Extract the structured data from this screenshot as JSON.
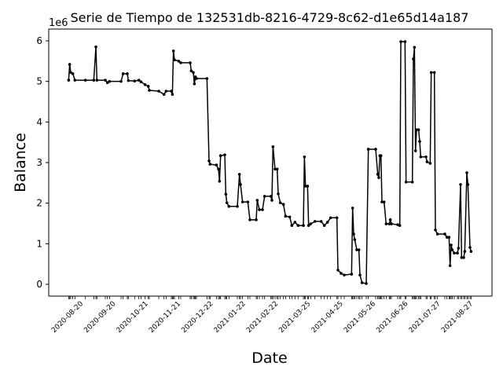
{
  "chart_data": {
    "type": "line",
    "title": "Serie de Tiempo de 132531db-8216-4729-8c62-d1e65d14a187",
    "x_label": "Date",
    "y_label": "Balance",
    "y_offset_label": "1e6",
    "xlim": [
      "2020-07-21",
      "2021-09-17"
    ],
    "xticks": [
      "2020-08-20",
      "2020-09-20",
      "2020-10-21",
      "2020-11-21",
      "2020-12-22",
      "2021-01-22",
      "2021-02-22",
      "2021-03-25",
      "2021-04-25",
      "2021-05-26",
      "2021-06-26",
      "2021-07-27",
      "2021-08-27"
    ],
    "ylim": [
      -0.29,
      6.29
    ],
    "yticks": [
      0,
      1,
      2,
      3,
      4,
      5,
      6
    ],
    "x": [
      "2020-08-09",
      "2020-08-10",
      "2020-08-11",
      "2020-08-13",
      "2020-08-15",
      "2020-08-25",
      "2020-09-02",
      "2020-09-04",
      "2020-09-05",
      "2020-09-13",
      "2020-09-15",
      "2020-09-17",
      "2020-09-28",
      "2020-09-30",
      "2020-10-04",
      "2020-10-05",
      "2020-10-11",
      "2020-10-15",
      "2020-10-17",
      "2020-10-21",
      "2020-10-24",
      "2020-10-25",
      "2020-11-03",
      "2020-11-08",
      "2020-11-10",
      "2020-11-15",
      "2020-11-16",
      "2020-11-17",
      "2020-11-18",
      "2020-11-22",
      "2020-11-24",
      "2020-12-03",
      "2020-12-04",
      "2020-12-06",
      "2020-12-07",
      "2020-12-08",
      "2020-12-09",
      "2020-12-19",
      "2020-12-21",
      "2020-12-22",
      "2020-12-28",
      "2020-12-30",
      "2020-12-31",
      "2021-01-01",
      "2021-01-05",
      "2021-01-06",
      "2021-01-07",
      "2021-01-09",
      "2021-01-17",
      "2021-01-19",
      "2021-01-20",
      "2021-01-22",
      "2021-01-27",
      "2021-01-29",
      "2021-02-04",
      "2021-02-05",
      "2021-02-07",
      "2021-02-10",
      "2021-02-12",
      "2021-02-18",
      "2021-02-19",
      "2021-02-20",
      "2021-02-22",
      "2021-02-24",
      "2021-02-25",
      "2021-02-27",
      "2021-03-02",
      "2021-03-04",
      "2021-03-08",
      "2021-03-10",
      "2021-03-13",
      "2021-03-16",
      "2021-03-21",
      "2021-03-22",
      "2021-03-23",
      "2021-03-25",
      "2021-03-26",
      "2021-03-28",
      "2021-04-01",
      "2021-04-07",
      "2021-04-10",
      "2021-04-13",
      "2021-04-16",
      "2021-04-22",
      "2021-04-23",
      "2021-04-26",
      "2021-04-29",
      "2021-05-06",
      "2021-05-07",
      "2021-05-08",
      "2021-05-09",
      "2021-05-11",
      "2021-05-13",
      "2021-05-14",
      "2021-05-16",
      "2021-05-20",
      "2021-05-22",
      "2021-05-29",
      "2021-05-31",
      "2021-06-01",
      "2021-06-02",
      "2021-06-03",
      "2021-06-04",
      "2021-06-06",
      "2021-06-08",
      "2021-06-11",
      "2021-06-12",
      "2021-06-13",
      "2021-06-19",
      "2021-06-21",
      "2021-06-22",
      "2021-06-26",
      "2021-06-27",
      "2021-07-03",
      "2021-07-04",
      "2021-07-05",
      "2021-07-06",
      "2021-07-07",
      "2021-07-09",
      "2021-07-10",
      "2021-07-11",
      "2021-07-16",
      "2021-07-17",
      "2021-07-20",
      "2021-07-21",
      "2021-07-24",
      "2021-07-25",
      "2021-07-27",
      "2021-08-03",
      "2021-08-05",
      "2021-08-07",
      "2021-08-08",
      "2021-08-09",
      "2021-08-10",
      "2021-08-12",
      "2021-08-15",
      "2021-08-16",
      "2021-08-18",
      "2021-08-19",
      "2021-08-21",
      "2021-08-22",
      "2021-08-24",
      "2021-08-25",
      "2021-08-27",
      "2021-08-28"
    ],
    "series": [
      {
        "name": "Balance",
        "color": "#000000",
        "values": [
          5.03,
          5.42,
          5.22,
          5.19,
          5.03,
          5.03,
          5.03,
          5.85,
          5.03,
          5.03,
          4.97,
          5.0,
          5.0,
          5.19,
          5.19,
          5.02,
          5.01,
          5.03,
          4.99,
          4.92,
          4.88,
          4.78,
          4.76,
          4.68,
          4.76,
          4.76,
          4.68,
          5.75,
          5.53,
          5.5,
          5.46,
          5.46,
          5.26,
          5.22,
          4.94,
          5.11,
          5.07,
          5.07,
          3.04,
          2.96,
          2.94,
          2.84,
          2.54,
          3.17,
          3.19,
          2.22,
          2.01,
          1.92,
          1.92,
          2.71,
          2.46,
          2.03,
          2.03,
          1.59,
          1.59,
          2.07,
          1.84,
          1.84,
          2.17,
          2.17,
          2.07,
          3.39,
          2.84,
          2.84,
          2.23,
          2.01,
          1.97,
          1.68,
          1.66,
          1.45,
          1.53,
          1.45,
          1.45,
          3.14,
          2.42,
          2.42,
          1.45,
          1.49,
          1.55,
          1.55,
          1.45,
          1.53,
          1.64,
          1.64,
          0.35,
          0.27,
          0.23,
          0.25,
          1.88,
          1.24,
          1.1,
          0.85,
          0.85,
          0.23,
          0.04,
          0.02,
          3.33,
          3.33,
          2.71,
          2.63,
          3.17,
          3.17,
          2.03,
          2.03,
          1.49,
          1.49,
          1.59,
          1.49,
          1.47,
          1.45,
          5.98,
          5.98,
          2.52,
          2.52,
          5.55,
          5.84,
          3.29,
          3.81,
          3.81,
          3.52,
          3.14,
          3.14,
          3.02,
          2.98,
          5.22,
          5.22,
          1.34,
          1.24,
          1.24,
          1.16,
          1.16,
          0.46,
          0.97,
          0.85,
          0.77,
          0.77,
          0.89,
          2.46,
          0.66,
          0.66,
          0.81,
          2.75,
          2.46,
          0.91,
          0.81
        ]
      }
    ]
  }
}
